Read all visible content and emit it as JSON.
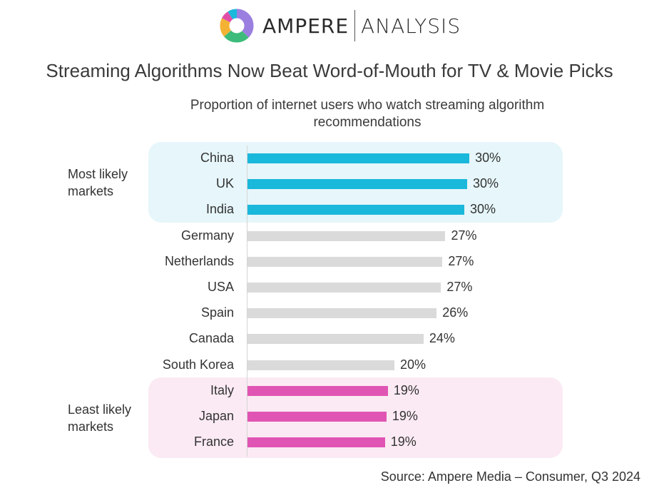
{
  "brand": {
    "left": "AMPERE",
    "right": "ANALYSIS"
  },
  "title": "Streaming Algorithms Now Beat Word-of-Mouth for TV & Movie Picks",
  "subtitle": "Proportion of internet users who watch streaming algorithm recommendations",
  "groups": {
    "top": "Most likely markets",
    "bottom": "Least likely markets"
  },
  "source": "Source: Ampere Media – Consumer, Q3 2024",
  "colors": {
    "highlight_top": "#1ab8db",
    "highlight_bottom": "#e055b3",
    "neutral": "#dadada"
  },
  "chart_data": {
    "type": "bar",
    "orientation": "horizontal",
    "categories": [
      "China",
      "UK",
      "India",
      "Germany",
      "Netherlands",
      "USA",
      "Spain",
      "Canada",
      "South Korea",
      "Italy",
      "Japan",
      "France"
    ],
    "values": [
      30,
      30,
      30,
      27,
      27,
      27,
      26,
      24,
      20,
      19,
      19,
      19
    ],
    "value_labels": [
      "30%",
      "30%",
      "30%",
      "27%",
      "27%",
      "27%",
      "26%",
      "24%",
      "20%",
      "19%",
      "19%",
      "19%"
    ],
    "groups": [
      "top",
      "top",
      "top",
      "neutral",
      "neutral",
      "neutral",
      "neutral",
      "neutral",
      "neutral",
      "bottom",
      "bottom",
      "bottom"
    ],
    "bar_lengths": [
      30.5,
      30.2,
      29.8,
      27.2,
      26.8,
      26.6,
      26.0,
      24.2,
      20.2,
      19.3,
      19.1,
      18.9
    ],
    "xlim": [
      0,
      36
    ],
    "unit": "%",
    "grid": false
  }
}
